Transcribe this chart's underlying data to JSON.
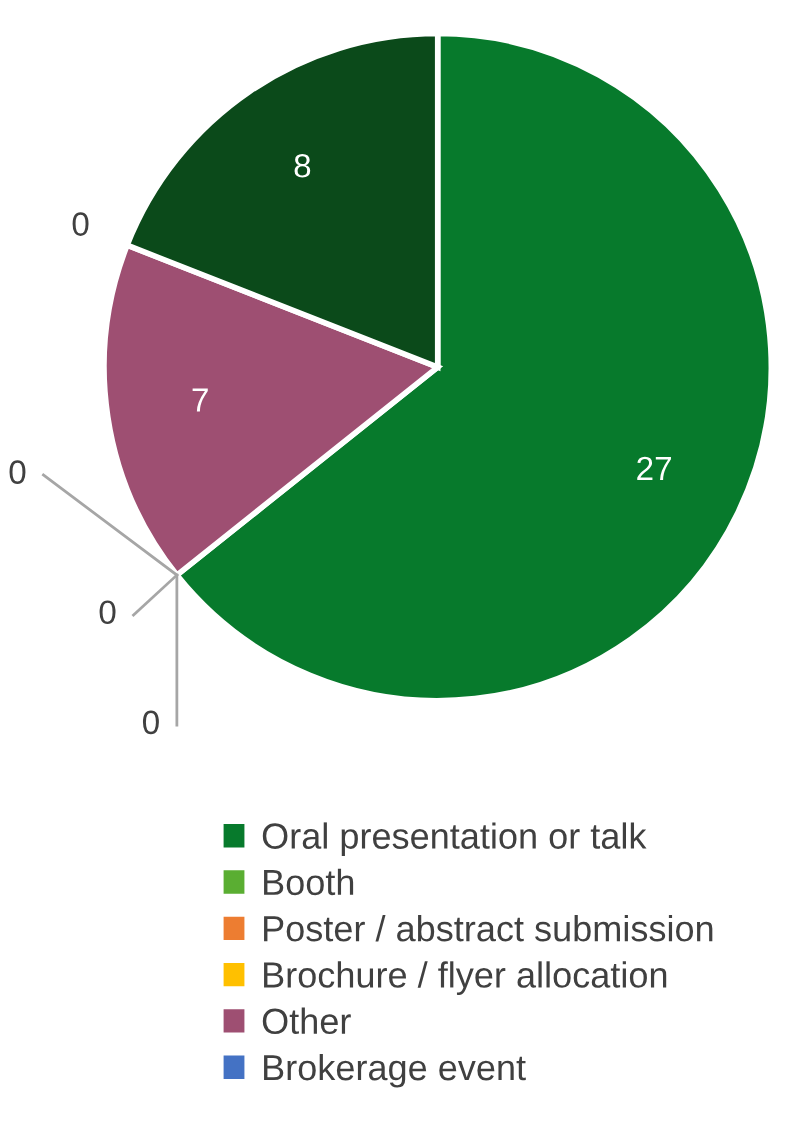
{
  "chart_data": {
    "type": "pie",
    "categories": [
      "Oral presentation or talk",
      "Booth",
      "Poster / abstract submission",
      "Brochure / flyer allocation",
      "Other",
      "Brokerage event",
      null
    ],
    "values": [
      27,
      0,
      0,
      0,
      7,
      0,
      8
    ],
    "colors": [
      "#077a2c",
      "#5aae32",
      "#ed7d31",
      "#ffc000",
      "#9e4f72",
      "#4472c4",
      "#0b4a1a"
    ],
    "value_labels": [
      "27",
      "0",
      "0",
      "0",
      "7",
      "0",
      "8"
    ],
    "legend": "bottom"
  }
}
